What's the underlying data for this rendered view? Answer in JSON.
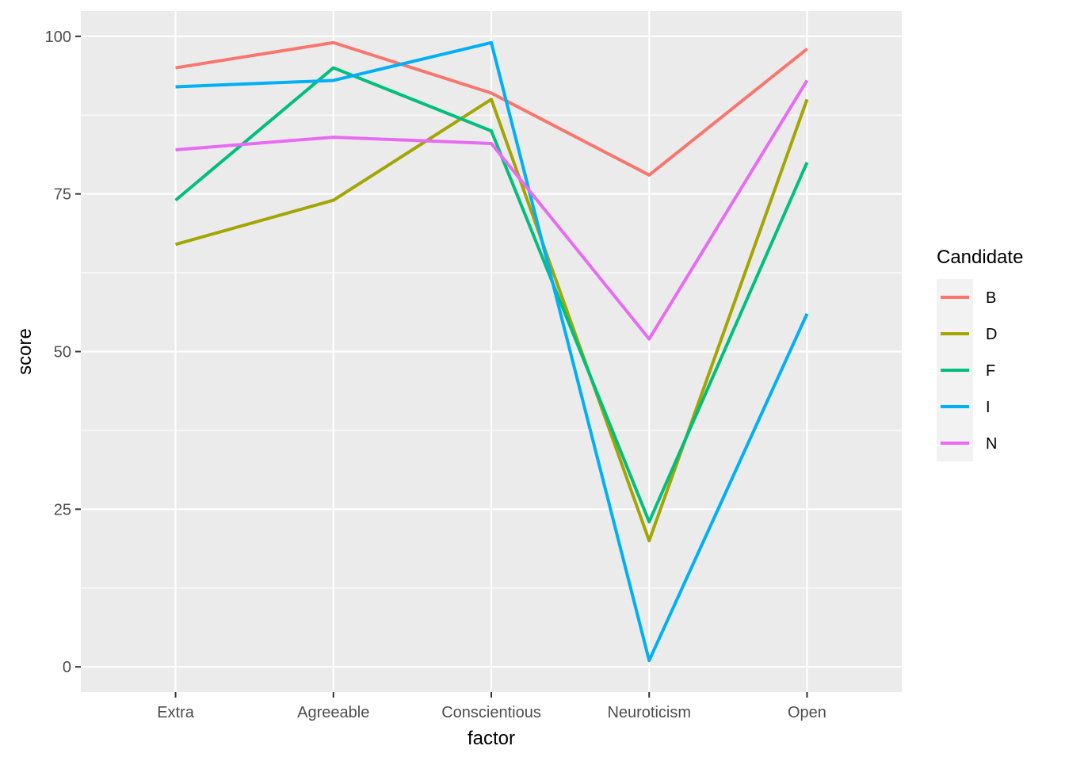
{
  "chart_data": {
    "type": "line",
    "title": "",
    "xlabel": "factor",
    "ylabel": "score",
    "categories": [
      "Extra",
      "Agreeable",
      "Conscientious",
      "Neuroticism",
      "Open"
    ],
    "ylim": [
      -4,
      104
    ],
    "y_ticks": [
      0,
      25,
      50,
      75,
      100
    ],
    "y_tick_labels": [
      "0",
      "25",
      "50",
      "75",
      "100"
    ],
    "grid": true,
    "legend": {
      "title": "Candidate",
      "placement": "right"
    },
    "series": [
      {
        "name": "B",
        "color": "#F8766D",
        "values": [
          95,
          99,
          91,
          78,
          98
        ]
      },
      {
        "name": "D",
        "color": "#A3A500",
        "values": [
          67,
          74,
          90,
          20,
          90
        ]
      },
      {
        "name": "F",
        "color": "#00BF7D",
        "values": [
          74,
          95,
          85,
          23,
          80
        ]
      },
      {
        "name": "I",
        "color": "#00B0F6",
        "values": [
          92,
          93,
          99,
          1,
          56
        ]
      },
      {
        "name": "N",
        "color": "#E76BF3",
        "values": [
          82,
          84,
          83,
          52,
          93
        ]
      }
    ],
    "colors": {
      "panel_background": "#EBEBEB",
      "grid_major": "#FFFFFF",
      "legend_key_background": "#F2F2F2"
    }
  }
}
